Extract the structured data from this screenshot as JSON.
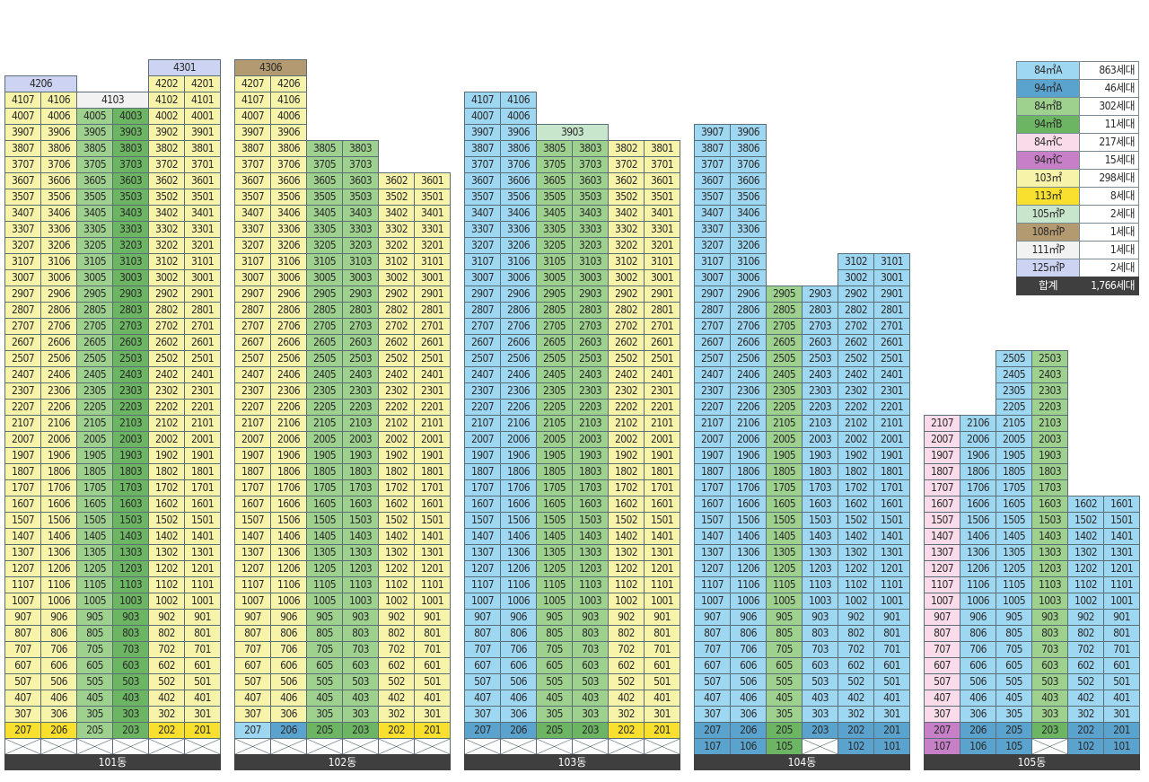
{
  "colors": {
    "84A": "#9ed7f2",
    "94A": "#5ba3cf",
    "84B": "#9fd18e",
    "94B": "#6cb562",
    "84C": "#fadbe9",
    "94C": "#c77fc7",
    "103": "#f7f3a8",
    "113": "#f9e02e",
    "105P": "#c8e6cb",
    "108P": "#b49a70",
    "111P": "#f2f2f2",
    "125P": "#cdd3f2",
    "total": "#3f3f3f",
    "pilotis": "#ffffff"
  },
  "legend": [
    {
      "type": "84A",
      "label": "84㎡A",
      "count": "863세대"
    },
    {
      "type": "94A",
      "label": "94㎡A",
      "count": "46세대"
    },
    {
      "type": "84B",
      "label": "84㎡B",
      "count": "302세대"
    },
    {
      "type": "94B",
      "label": "94㎡B",
      "count": "11세대"
    },
    {
      "type": "84C",
      "label": "84㎡C",
      "count": "217세대"
    },
    {
      "type": "94C",
      "label": "94㎡C",
      "count": "15세대"
    },
    {
      "type": "103",
      "label": "103㎡",
      "count": "298세대"
    },
    {
      "type": "113",
      "label": "113㎡",
      "count": "8세대"
    },
    {
      "type": "105P",
      "label": "105㎡P",
      "count": "2세대"
    },
    {
      "type": "108P",
      "label": "108㎡P",
      "count": "1세대"
    },
    {
      "type": "111P",
      "label": "111㎡P",
      "count": "1세대"
    },
    {
      "type": "125P",
      "label": "125㎡P",
      "count": "2세대"
    },
    {
      "type": "total",
      "label": "합계",
      "count": "1,766세대"
    }
  ],
  "buildings": [
    {
      "name": "101동",
      "columns": [
        {
          "line": "07",
          "top": 41,
          "type": "103"
        },
        {
          "line": "06",
          "top": 41,
          "type": "103"
        },
        {
          "line": "05",
          "top": 40,
          "type": "84B"
        },
        {
          "line": "03",
          "top": 40,
          "type": "94B"
        },
        {
          "line": "02",
          "top": 42,
          "type": "103"
        },
        {
          "line": "01",
          "top": 42,
          "type": "103"
        }
      ],
      "floor2": [
        "113",
        "113",
        "84B",
        "94B",
        "113",
        "113"
      ],
      "pilotis_all": true,
      "specials": [
        {
          "label": "4206",
          "floor": 42,
          "col": 0,
          "span": 2,
          "type": "125P"
        },
        {
          "label": "4103",
          "floor": 41,
          "col": 2,
          "span": 2,
          "type": "111P"
        },
        {
          "label": "4301",
          "floor": 43,
          "col": 4,
          "span": 2,
          "type": "125P"
        }
      ]
    },
    {
      "name": "102동",
      "columns": [
        {
          "line": "07",
          "top": 42,
          "type": "103"
        },
        {
          "line": "06",
          "top": 42,
          "type": "103"
        },
        {
          "line": "05",
          "top": 38,
          "type": "84B"
        },
        {
          "line": "03",
          "top": 38,
          "type": "84B"
        },
        {
          "line": "02",
          "top": 36,
          "type": "103"
        },
        {
          "line": "01",
          "top": 36,
          "type": "103"
        }
      ],
      "floor2": [
        "84A",
        "94A",
        "94B",
        "94B",
        "113",
        "113"
      ],
      "pilotis_all": true,
      "specials": [
        {
          "label": "4306",
          "floor": 43,
          "col": 0,
          "span": 2,
          "type": "108P"
        }
      ]
    },
    {
      "name": "103동",
      "columns": [
        {
          "line": "07",
          "top": 41,
          "type": "84A"
        },
        {
          "line": "06",
          "top": 41,
          "type": "84A"
        },
        {
          "line": "05",
          "top": 38,
          "type": "84B"
        },
        {
          "line": "03",
          "top": 38,
          "type": "84B"
        },
        {
          "line": "02",
          "top": 38,
          "type": "103"
        },
        {
          "line": "01",
          "top": 38,
          "type": "103"
        }
      ],
      "floor2": [
        "94A",
        "94A",
        "94B",
        "94B",
        "113",
        "113"
      ],
      "pilotis_all": true,
      "specials": [
        {
          "label": "3903",
          "floor": 39,
          "col": 2,
          "span": 2,
          "type": "105P"
        }
      ]
    },
    {
      "name": "104동",
      "columns": [
        {
          "line": "07",
          "top": 39,
          "type": "84A"
        },
        {
          "line": "06",
          "top": 39,
          "type": "84A"
        },
        {
          "line": "05",
          "top": 29,
          "type": "84B"
        },
        {
          "line": "03",
          "top": 29,
          "type": "84A"
        },
        {
          "line": "02",
          "top": 31,
          "type": "84A"
        },
        {
          "line": "01",
          "top": 31,
          "type": "84A"
        }
      ],
      "floor2": [
        "94A",
        "94A",
        "94B",
        "94A",
        "94A",
        "94A"
      ],
      "floor1": [
        "94A",
        "94A",
        "94B",
        null,
        "94A",
        "94A"
      ],
      "pilotis": [
        false,
        false,
        false,
        true,
        false,
        false
      ]
    },
    {
      "name": "105동",
      "columns": [
        {
          "line": "07",
          "top": 21,
          "type": "84C"
        },
        {
          "line": "06",
          "top": 21,
          "type": "84A"
        },
        {
          "line": "05",
          "top": 25,
          "type": "84A"
        },
        {
          "line": "03",
          "top": 25,
          "type": "84B"
        },
        {
          "line": "02",
          "top": 16,
          "type": "84A"
        },
        {
          "line": "01",
          "top": 16,
          "type": "84A"
        }
      ],
      "floor2": [
        "94C",
        "94A",
        "94A",
        "94B",
        "94A",
        "94A"
      ],
      "floor1": [
        "94C",
        "94A",
        "94A",
        null,
        "94A",
        "94A"
      ],
      "pilotis": [
        false,
        false,
        false,
        true,
        false,
        false
      ]
    }
  ]
}
